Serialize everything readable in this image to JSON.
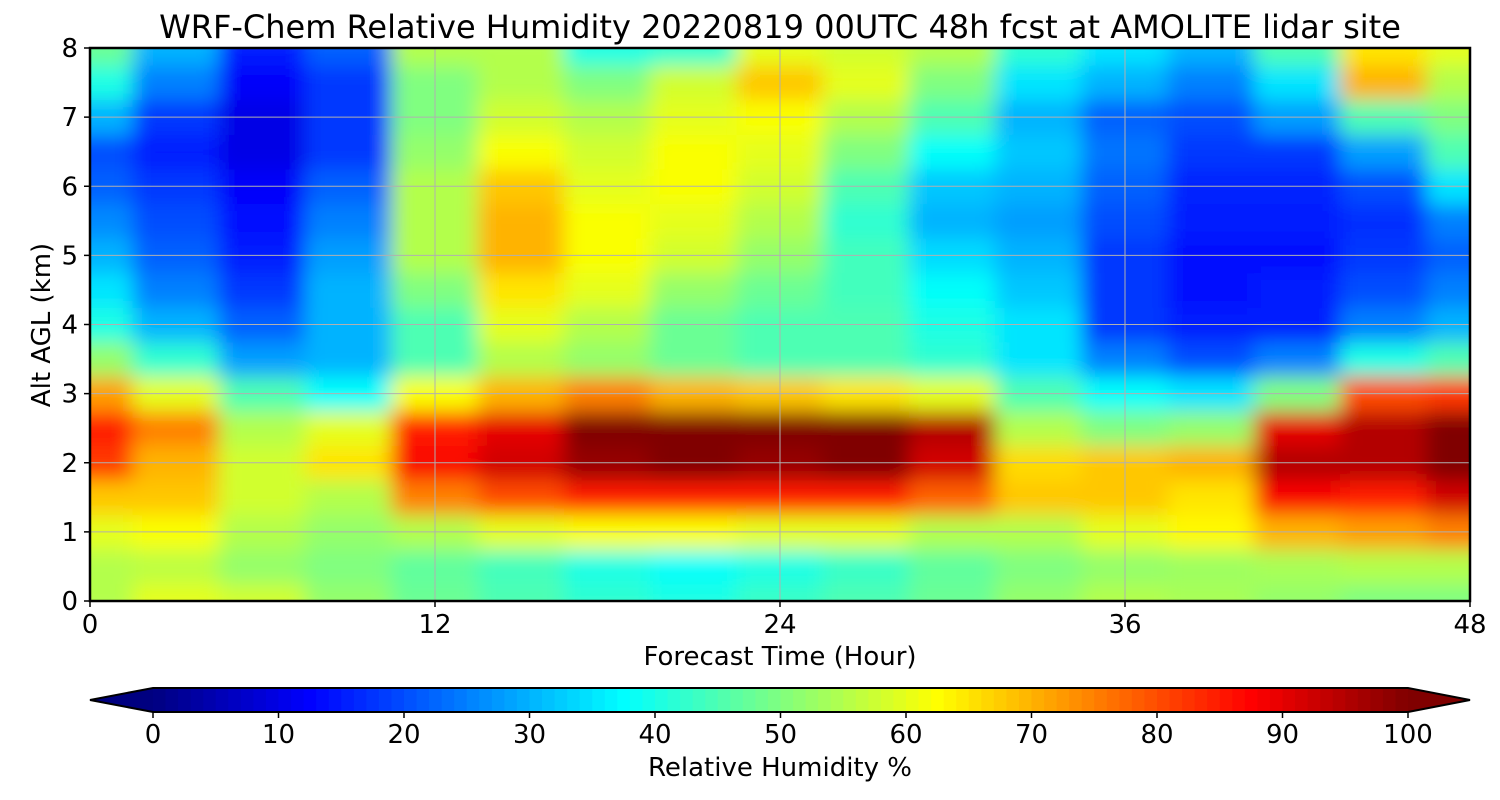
{
  "chart_data": {
    "type": "heatmap",
    "title": "WRF-Chem Relative Humidity 20220819 00UTC 48h fcst at AMOLITE lidar site",
    "xlabel": "Forecast Time (Hour)",
    "ylabel": "Alt AGL (km)",
    "xlim": [
      0,
      48
    ],
    "ylim": [
      0,
      8
    ],
    "x_ticks": [
      "0",
      "12",
      "24",
      "36",
      "48"
    ],
    "x_tick_values": [
      0,
      12,
      24,
      36,
      48
    ],
    "y_ticks": [
      "0",
      "1",
      "2",
      "3",
      "4",
      "5",
      "6",
      "7",
      "8"
    ],
    "y_tick_values": [
      0,
      1,
      2,
      3,
      4,
      5,
      6,
      7,
      8
    ],
    "grid": true,
    "colormap": "jet",
    "x": [
      0,
      3,
      6,
      9,
      12,
      15,
      18,
      21,
      24,
      27,
      30,
      33,
      36,
      39,
      42,
      45,
      48
    ],
    "y": [
      0,
      0.5,
      1,
      1.5,
      2,
      2.5,
      3,
      3.5,
      4,
      4.5,
      5,
      5.5,
      6,
      6.5,
      7,
      7.5,
      8
    ],
    "z": [
      [
        55,
        60,
        58,
        52,
        48,
        45,
        42,
        40,
        43,
        45,
        48,
        52,
        55,
        54,
        52,
        50,
        50
      ],
      [
        55,
        56,
        52,
        50,
        47,
        44,
        40,
        38,
        40,
        43,
        47,
        50,
        52,
        53,
        54,
        55,
        55
      ],
      [
        60,
        62,
        55,
        52,
        55,
        60,
        62,
        62,
        60,
        60,
        55,
        55,
        60,
        63,
        70,
        72,
        75
      ],
      [
        68,
        68,
        58,
        55,
        75,
        80,
        85,
        85,
        85,
        85,
        78,
        68,
        68,
        65,
        88,
        85,
        92
      ],
      [
        82,
        70,
        58,
        65,
        88,
        92,
        98,
        100,
        98,
        100,
        92,
        66,
        68,
        70,
        95,
        95,
        100
      ],
      [
        85,
        75,
        55,
        60,
        85,
        90,
        100,
        100,
        100,
        100,
        95,
        55,
        50,
        52,
        90,
        95,
        100
      ],
      [
        72,
        60,
        45,
        38,
        62,
        70,
        75,
        70,
        68,
        65,
        60,
        45,
        38,
        35,
        50,
        80,
        82
      ],
      [
        52,
        42,
        28,
        30,
        45,
        55,
        52,
        48,
        45,
        45,
        42,
        35,
        25,
        20,
        25,
        40,
        45
      ],
      [
        40,
        30,
        22,
        30,
        45,
        60,
        55,
        48,
        45,
        45,
        40,
        35,
        18,
        15,
        15,
        25,
        30
      ],
      [
        35,
        25,
        18,
        30,
        50,
        65,
        60,
        52,
        48,
        44,
        38,
        32,
        18,
        14,
        15,
        20,
        25
      ],
      [
        30,
        22,
        15,
        28,
        55,
        70,
        62,
        58,
        52,
        44,
        34,
        30,
        18,
        14,
        14,
        18,
        22
      ],
      [
        26,
        20,
        14,
        25,
        55,
        70,
        62,
        60,
        55,
        42,
        30,
        28,
        20,
        15,
        15,
        17,
        25
      ],
      [
        22,
        18,
        12,
        22,
        55,
        68,
        60,
        62,
        58,
        45,
        32,
        30,
        22,
        16,
        16,
        20,
        35
      ],
      [
        20,
        15,
        10,
        18,
        52,
        62,
        58,
        62,
        60,
        50,
        38,
        32,
        24,
        18,
        18,
        28,
        45
      ],
      [
        30,
        18,
        10,
        18,
        50,
        58,
        55,
        60,
        62,
        55,
        45,
        30,
        22,
        20,
        28,
        45,
        50
      ],
      [
        40,
        25,
        12,
        18,
        50,
        55,
        50,
        58,
        68,
        60,
        50,
        35,
        30,
        25,
        35,
        70,
        55
      ],
      [
        48,
        30,
        15,
        22,
        55,
        55,
        40,
        42,
        60,
        58,
        55,
        42,
        35,
        30,
        45,
        65,
        60
      ]
    ],
    "colorbar": {
      "label": "Relative Humidity %",
      "range": [
        0,
        100
      ],
      "ticks": [
        "0",
        "10",
        "20",
        "30",
        "40",
        "50",
        "60",
        "70",
        "80",
        "90",
        "100"
      ],
      "tick_values": [
        0,
        10,
        20,
        30,
        40,
        50,
        60,
        70,
        80,
        90,
        100
      ],
      "orientation": "horizontal",
      "placement": "bottom",
      "extend": "both"
    }
  }
}
